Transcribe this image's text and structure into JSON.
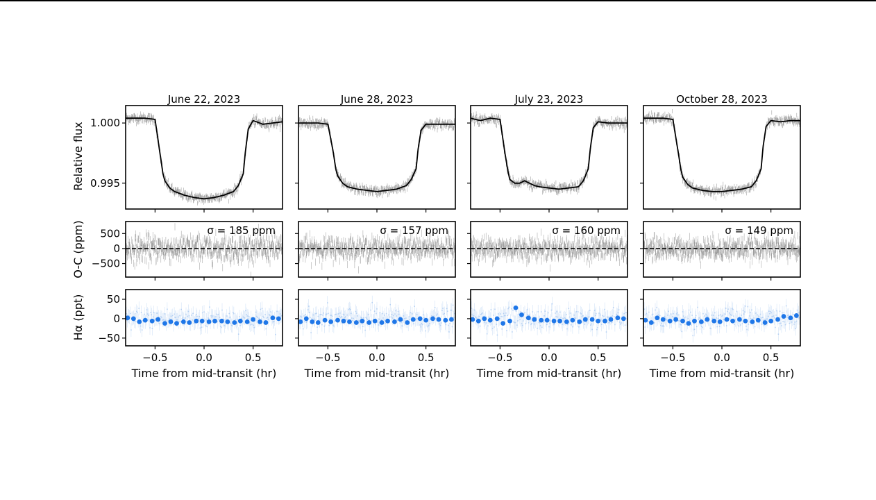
{
  "chart_data": {
    "type": "line",
    "layout": "grid-3-rows-by-4-columns",
    "x_axis": {
      "label": "Time from mid-transit (hr)",
      "range": [
        -0.8,
        0.8
      ],
      "ticks": [
        -0.5,
        0.0,
        0.5
      ],
      "tick_labels": [
        "−0.5",
        "0.0",
        "0.5"
      ]
    },
    "rows": [
      {
        "id": "flux",
        "ylabel": "Relative flux",
        "ylim": [
          0.99285,
          1.00145
        ],
        "ticks": [
          0.995,
          1.0
        ],
        "tick_labels": [
          "0.995",
          "1.000"
        ]
      },
      {
        "id": "oc",
        "ylabel": "O-C (ppm)",
        "ylim": [
          -950,
          900
        ],
        "ticks": [
          -500,
          0,
          500
        ],
        "tick_labels": [
          "−500",
          "0",
          "500"
        ]
      },
      {
        "id": "halpha",
        "ylabel": "Hα (ppt)",
        "ylim": [
          -70,
          75
        ],
        "ticks": [
          -50,
          0,
          50
        ],
        "tick_labels": [
          "−50",
          "0",
          "50"
        ]
      }
    ],
    "panels": [
      {
        "title": "June 22, 2023",
        "sigma_label": "σ = 185 ppm",
        "sigma_ppm": 185,
        "flux_model": {
          "x": [
            -0.8,
            -0.7,
            -0.6,
            -0.5,
            -0.45,
            -0.42,
            -0.4,
            -0.35,
            -0.3,
            -0.2,
            -0.1,
            0.0,
            0.1,
            0.2,
            0.3,
            0.35,
            0.4,
            0.42,
            0.45,
            0.5,
            0.6,
            0.7,
            0.8
          ],
          "y": [
            1.0004,
            1.0004,
            1.0004,
            1.0003,
            0.9975,
            0.9958,
            0.9952,
            0.9946,
            0.9943,
            0.994,
            0.9938,
            0.9937,
            0.9938,
            0.994,
            0.9943,
            0.9948,
            0.9958,
            0.9975,
            0.9995,
            1.0002,
            0.9999,
            1.0,
            1.0001
          ]
        },
        "halpha_bins": {
          "x": [
            -0.78,
            -0.72,
            -0.66,
            -0.6,
            -0.53,
            -0.47,
            -0.4,
            -0.34,
            -0.28,
            -0.21,
            -0.15,
            -0.08,
            -0.02,
            0.05,
            0.11,
            0.18,
            0.24,
            0.31,
            0.37,
            0.44,
            0.5,
            0.57,
            0.63,
            0.7,
            0.76
          ],
          "y": [
            2,
            0,
            -8,
            -4,
            -6,
            -2,
            -12,
            -8,
            -12,
            -8,
            -10,
            -6,
            -6,
            -8,
            -6,
            -6,
            -8,
            -10,
            -6,
            -8,
            -2,
            -8,
            -10,
            2,
            0
          ]
        }
      },
      {
        "title": "June 28, 2023",
        "sigma_label": "σ = 157 ppm",
        "sigma_ppm": 157,
        "flux_model": {
          "x": [
            -0.8,
            -0.7,
            -0.6,
            -0.5,
            -0.45,
            -0.42,
            -0.4,
            -0.35,
            -0.3,
            -0.2,
            -0.1,
            0.0,
            0.1,
            0.2,
            0.3,
            0.35,
            0.4,
            0.42,
            0.45,
            0.5,
            0.6,
            0.7,
            0.8
          ],
          "y": [
            1.0,
            1.0,
            1.0,
            0.9999,
            0.9978,
            0.9962,
            0.9956,
            0.995,
            0.9947,
            0.9945,
            0.9944,
            0.9943,
            0.9944,
            0.9945,
            0.9948,
            0.9953,
            0.9962,
            0.9978,
            0.9994,
            0.9999,
            0.9999,
            0.9999,
            0.9999
          ]
        },
        "halpha_bins": {
          "x": [
            -0.78,
            -0.72,
            -0.66,
            -0.6,
            -0.53,
            -0.47,
            -0.4,
            -0.34,
            -0.28,
            -0.21,
            -0.15,
            -0.08,
            -0.02,
            0.05,
            0.11,
            0.18,
            0.24,
            0.31,
            0.37,
            0.44,
            0.5,
            0.57,
            0.63,
            0.7,
            0.76
          ],
          "y": [
            -8,
            0,
            -8,
            -10,
            -4,
            -8,
            -4,
            -6,
            -8,
            -10,
            -6,
            -10,
            -6,
            -10,
            -6,
            -8,
            -2,
            -10,
            -2,
            0,
            -4,
            0,
            -2,
            -4,
            -2
          ]
        }
      },
      {
        "title": "July 23, 2023",
        "sigma_label": "σ = 160 ppm",
        "sigma_ppm": 160,
        "flux_model": {
          "x": [
            -0.8,
            -0.7,
            -0.6,
            -0.5,
            -0.45,
            -0.42,
            -0.4,
            -0.35,
            -0.3,
            -0.25,
            -0.2,
            -0.15,
            -0.1,
            0.0,
            0.1,
            0.2,
            0.3,
            0.35,
            0.4,
            0.42,
            0.45,
            0.5,
            0.6,
            0.7,
            0.8
          ],
          "y": [
            1.0004,
            1.0002,
            1.0004,
            1.0003,
            0.9975,
            0.996,
            0.9953,
            0.995,
            0.995,
            0.9952,
            0.995,
            0.9948,
            0.9947,
            0.9946,
            0.9945,
            0.9946,
            0.9947,
            0.9952,
            0.9962,
            0.9978,
            0.9996,
            1.0001,
            1.0,
            1.0,
            1.0
          ]
        },
        "halpha_bins": {
          "x": [
            -0.78,
            -0.72,
            -0.66,
            -0.6,
            -0.53,
            -0.47,
            -0.4,
            -0.34,
            -0.28,
            -0.21,
            -0.15,
            -0.08,
            -0.02,
            0.05,
            0.11,
            0.18,
            0.24,
            0.31,
            0.37,
            0.44,
            0.5,
            0.57,
            0.63,
            0.7,
            0.76
          ],
          "y": [
            -2,
            -6,
            0,
            -4,
            0,
            -12,
            -6,
            28,
            10,
            2,
            -2,
            -4,
            -4,
            -6,
            -6,
            -8,
            -4,
            -8,
            -2,
            -2,
            -6,
            -6,
            -2,
            2,
            0
          ]
        }
      },
      {
        "title": "October 28, 2023",
        "sigma_label": "σ = 149 ppm",
        "sigma_ppm": 149,
        "flux_model": {
          "x": [
            -0.8,
            -0.7,
            -0.6,
            -0.5,
            -0.45,
            -0.42,
            -0.4,
            -0.35,
            -0.3,
            -0.2,
            -0.1,
            0.0,
            0.1,
            0.2,
            0.3,
            0.35,
            0.4,
            0.42,
            0.45,
            0.5,
            0.6,
            0.7,
            0.8
          ],
          "y": [
            1.0004,
            1.0004,
            1.0004,
            1.0003,
            0.9978,
            0.9962,
            0.9955,
            0.9949,
            0.9946,
            0.9944,
            0.9943,
            0.9943,
            0.9944,
            0.9945,
            0.9947,
            0.9952,
            0.9962,
            0.998,
            0.9997,
            1.0002,
            1.0001,
            1.0002,
            1.0002
          ]
        },
        "halpha_bins": {
          "x": [
            -0.78,
            -0.72,
            -0.66,
            -0.6,
            -0.53,
            -0.47,
            -0.4,
            -0.34,
            -0.28,
            -0.21,
            -0.15,
            -0.08,
            -0.02,
            0.05,
            0.11,
            0.18,
            0.24,
            0.31,
            0.37,
            0.44,
            0.5,
            0.57,
            0.63,
            0.7,
            0.76
          ],
          "y": [
            -4,
            -10,
            2,
            -2,
            -6,
            -2,
            -6,
            -12,
            -6,
            -8,
            -2,
            -6,
            -8,
            -2,
            -6,
            -2,
            -6,
            -8,
            -4,
            -10,
            -6,
            -2,
            6,
            2,
            8
          ]
        }
      }
    ],
    "colors": {
      "model": "#000000",
      "raw": "#8a8a8a",
      "binned": "#1f77e8",
      "halpha_raw": "#9fc3ef"
    }
  }
}
